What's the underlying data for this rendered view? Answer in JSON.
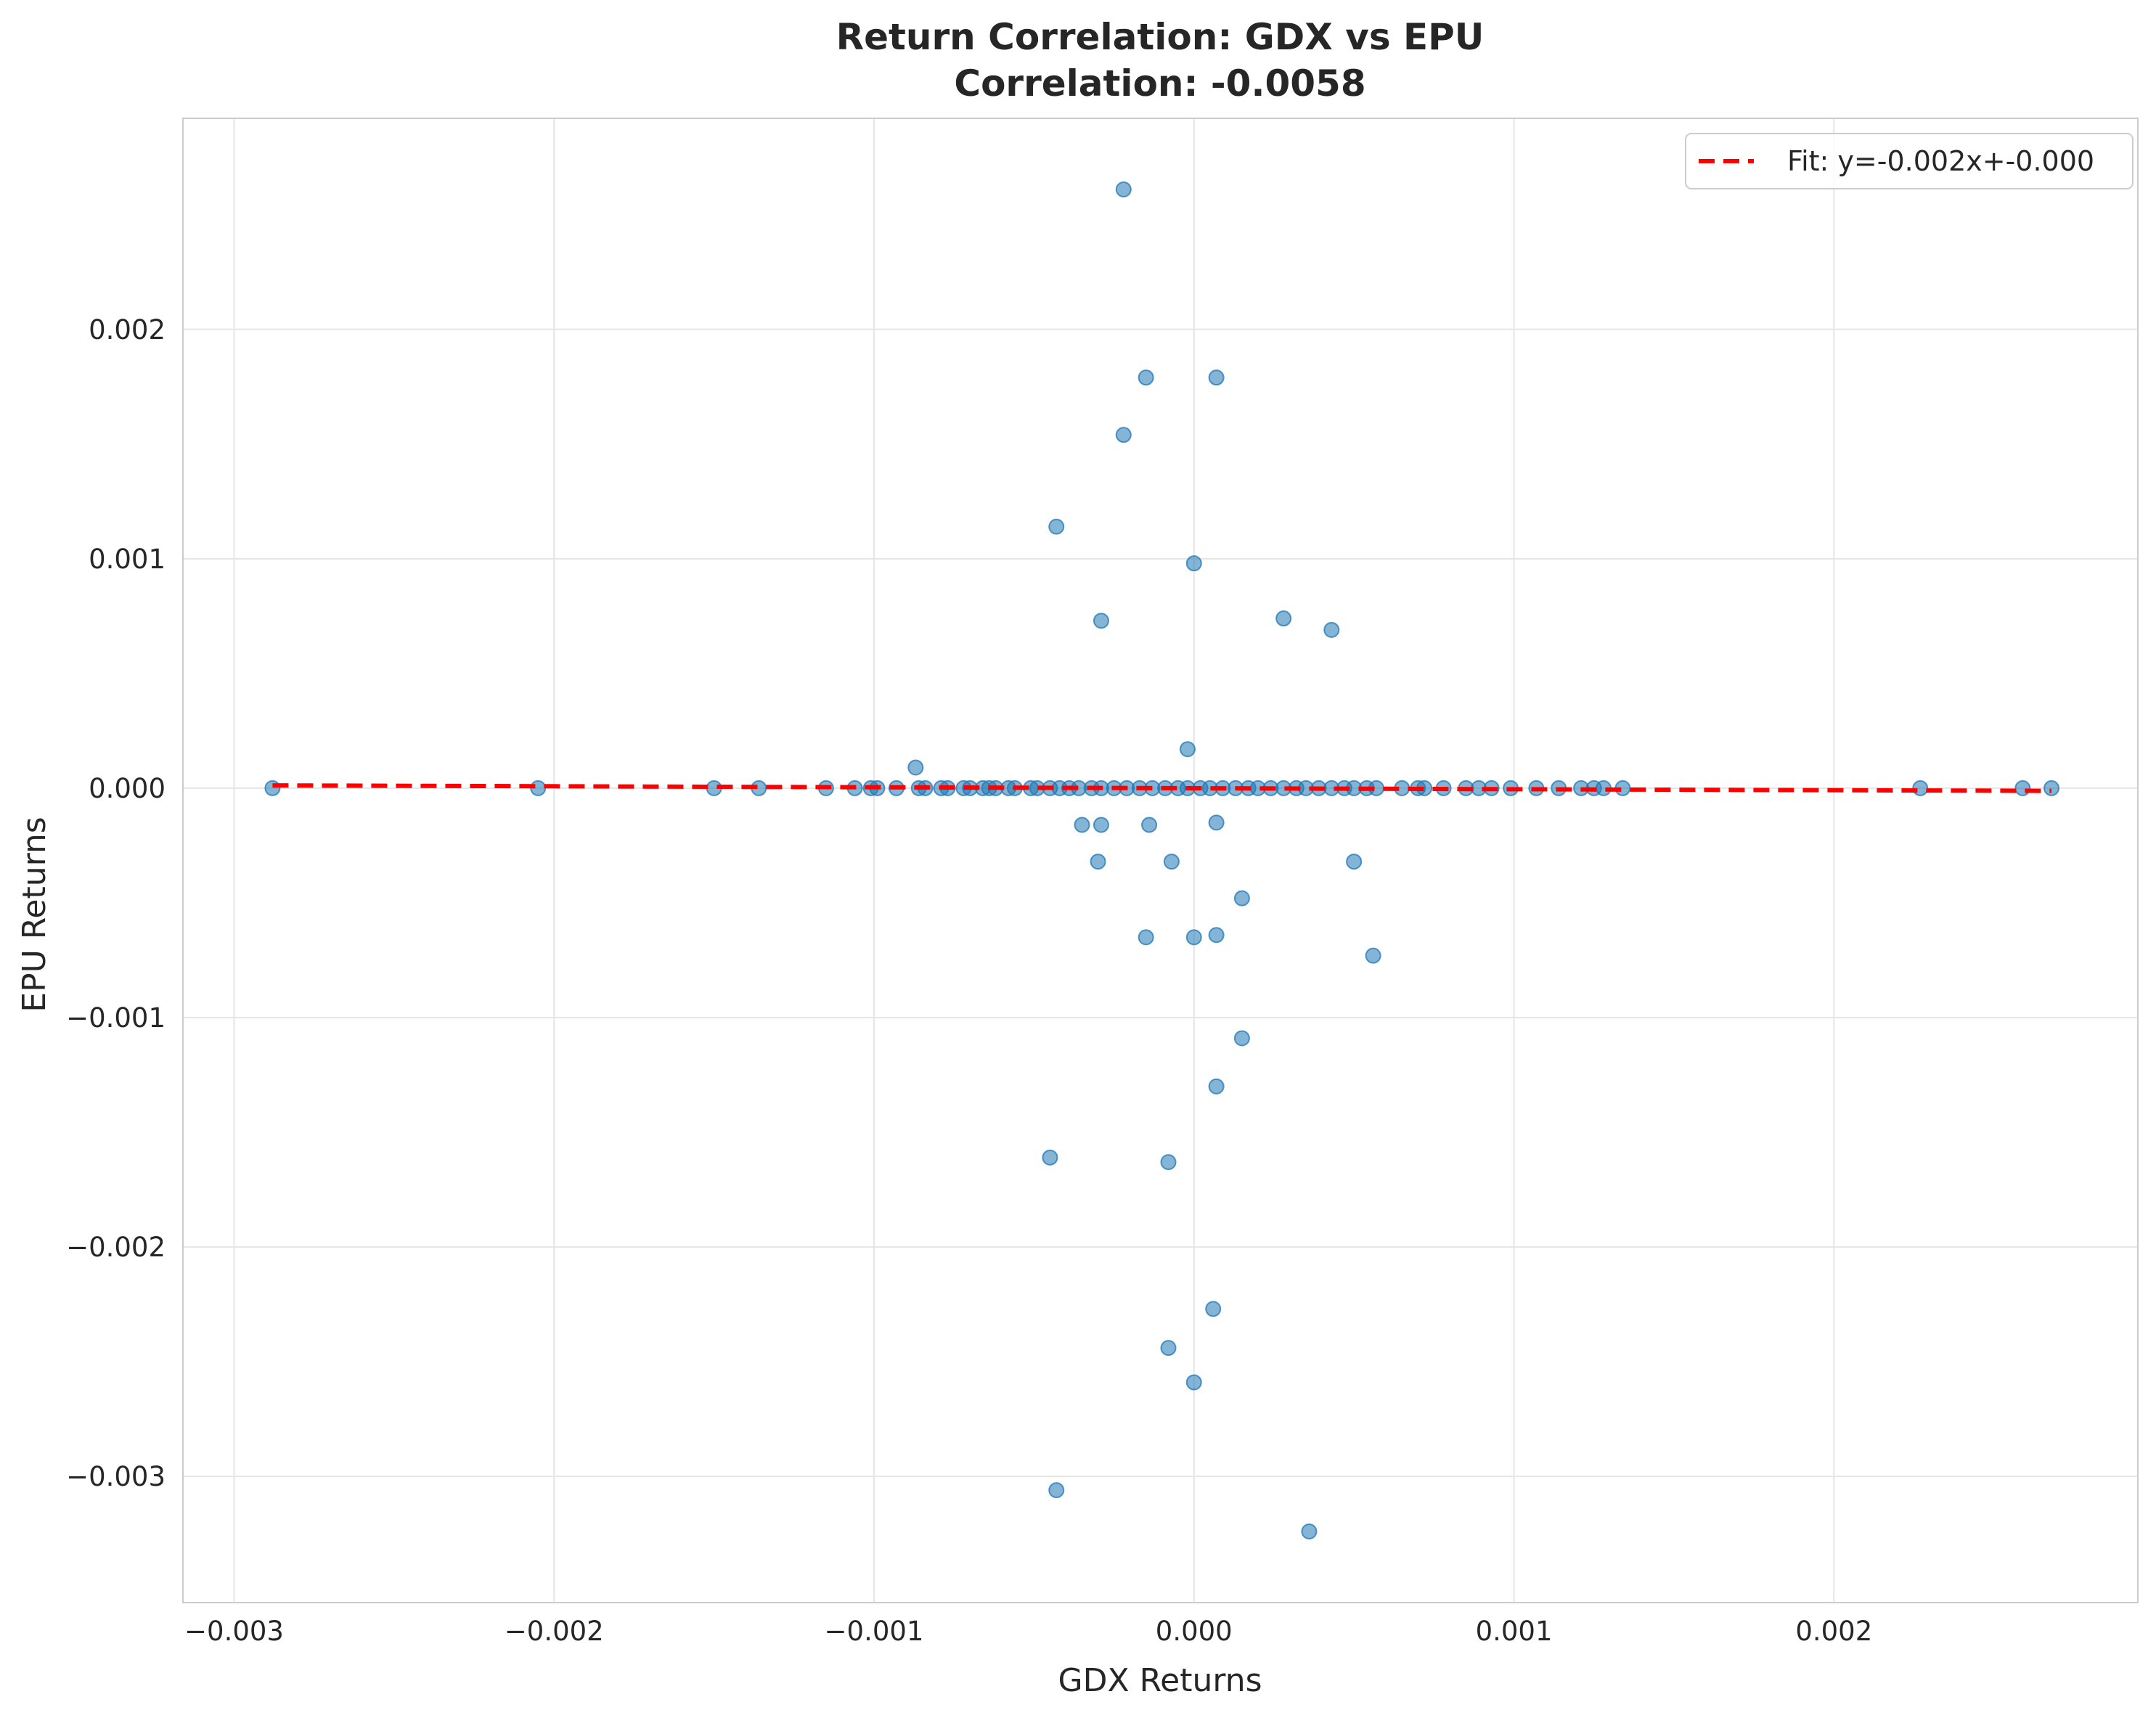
{
  "chart_data": {
    "type": "scatter",
    "title": "Return Correlation: GDX vs EPU",
    "subtitle": "Correlation: -0.0058",
    "xlabel": "GDX Returns",
    "ylabel": "EPU Returns",
    "xlim": [
      -0.00316,
      0.00295
    ],
    "ylim": [
      -0.00355,
      0.00292
    ],
    "x_ticks": [
      -0.003,
      -0.002,
      -0.001,
      0.0,
      0.001,
      0.002
    ],
    "x_tick_labels": [
      "−0.003",
      "−0.002",
      "−0.001",
      "0.000",
      "0.001",
      "0.002"
    ],
    "y_ticks": [
      0.002,
      0.001,
      0.0,
      -0.001,
      -0.002,
      -0.003
    ],
    "y_tick_labels": [
      "0.002",
      "0.001",
      "0.000",
      "−0.001",
      "−0.002",
      "−0.003"
    ],
    "grid": true,
    "legend_position": "top-right",
    "colors": {
      "points": "#1f77b4",
      "fit_line": "#ff0000",
      "grid": "#e5e5e5",
      "axes": "#cccccc"
    },
    "series": [
      {
        "name": "",
        "points": [
          [
            -0.00288,
            0
          ],
          [
            -0.00205,
            0
          ],
          [
            -0.0015,
            0
          ],
          [
            -0.00136,
            0
          ],
          [
            -0.00115,
            0
          ],
          [
            -0.00106,
            0
          ],
          [
            -0.00101,
            0
          ],
          [
            -0.00099,
            0
          ],
          [
            -0.00093,
            0
          ],
          [
            -0.00086,
            0
          ],
          [
            -0.00084,
            0
          ],
          [
            -0.00079,
            0
          ],
          [
            -0.00077,
            0
          ],
          [
            -0.00072,
            0
          ],
          [
            -0.0007,
            0
          ],
          [
            -0.00066,
            0
          ],
          [
            -0.00064,
            0
          ],
          [
            -0.00062,
            0
          ],
          [
            -0.00058,
            0
          ],
          [
            -0.00056,
            0
          ],
          [
            -0.00051,
            0
          ],
          [
            -0.00049,
            0
          ],
          [
            -0.00045,
            0
          ],
          [
            -0.00042,
            0
          ],
          [
            -0.00039,
            0
          ],
          [
            -0.00036,
            0
          ],
          [
            -0.00032,
            0
          ],
          [
            -0.00029,
            0
          ],
          [
            -0.00025,
            0
          ],
          [
            -0.00021,
            0
          ],
          [
            -0.00017,
            0
          ],
          [
            -0.00013,
            0
          ],
          [
            -9e-05,
            0
          ],
          [
            -5e-05,
            0
          ],
          [
            -2e-05,
            0
          ],
          [
            2e-05,
            0
          ],
          [
            5e-05,
            0
          ],
          [
            9e-05,
            0
          ],
          [
            0.00013,
            0
          ],
          [
            0.00017,
            0
          ],
          [
            0.0002,
            0
          ],
          [
            0.00024,
            0
          ],
          [
            0.00028,
            0
          ],
          [
            0.00032,
            0
          ],
          [
            0.00035,
            0
          ],
          [
            0.00039,
            0
          ],
          [
            0.00043,
            0
          ],
          [
            0.00047,
            0
          ],
          [
            0.0005,
            0
          ],
          [
            0.00054,
            0
          ],
          [
            0.00057,
            0
          ],
          [
            0.00065,
            0
          ],
          [
            0.0007,
            0
          ],
          [
            0.00072,
            0
          ],
          [
            0.00078,
            0
          ],
          [
            0.00085,
            0
          ],
          [
            0.00089,
            0
          ],
          [
            0.00093,
            0
          ],
          [
            0.00099,
            0
          ],
          [
            0.00107,
            0
          ],
          [
            0.00114,
            0
          ],
          [
            0.00121,
            0
          ],
          [
            0.00125,
            0
          ],
          [
            0.00128,
            0
          ],
          [
            0.00134,
            0
          ],
          [
            0.00227,
            0
          ],
          [
            0.00259,
            0
          ],
          [
            0.00268,
            0
          ],
          [
            -0.00022,
            0.00261
          ],
          [
            -0.00015,
            0.00179
          ],
          [
            7e-05,
            0.00179
          ],
          [
            -0.00022,
            0.00154
          ],
          [
            -0.00043,
            0.00114
          ],
          [
            0.0,
            0.00098
          ],
          [
            -0.00029,
            0.00073
          ],
          [
            0.00028,
            0.00074
          ],
          [
            0.00043,
            0.00069
          ],
          [
            -0.00087,
            9e-05
          ],
          [
            -2e-05,
            0.00017
          ],
          [
            -0.00035,
            -0.00016
          ],
          [
            -0.00029,
            -0.00016
          ],
          [
            -0.00014,
            -0.00016
          ],
          [
            7e-05,
            -0.00015
          ],
          [
            -0.0003,
            -0.00032
          ],
          [
            -7e-05,
            -0.00032
          ],
          [
            0.0005,
            -0.00032
          ],
          [
            0.00015,
            -0.00048
          ],
          [
            -0.00015,
            -0.00065
          ],
          [
            0.0,
            -0.00065
          ],
          [
            7e-05,
            -0.00064
          ],
          [
            0.00056,
            -0.00073
          ],
          [
            0.00015,
            -0.00109
          ],
          [
            7e-05,
            -0.0013
          ],
          [
            -0.00045,
            -0.00161
          ],
          [
            -8e-05,
            -0.00163
          ],
          [
            6e-05,
            -0.00227
          ],
          [
            -8e-05,
            -0.00244
          ],
          [
            0.0,
            -0.00259
          ],
          [
            -0.00043,
            -0.00306
          ],
          [
            0.00036,
            -0.00324
          ]
        ]
      }
    ],
    "fit": {
      "label": "Fit: y=-0.002x+-0.000",
      "slope": -0.002,
      "intercept": 0.0,
      "x_range": [
        -0.00288,
        0.00268
      ]
    }
  }
}
